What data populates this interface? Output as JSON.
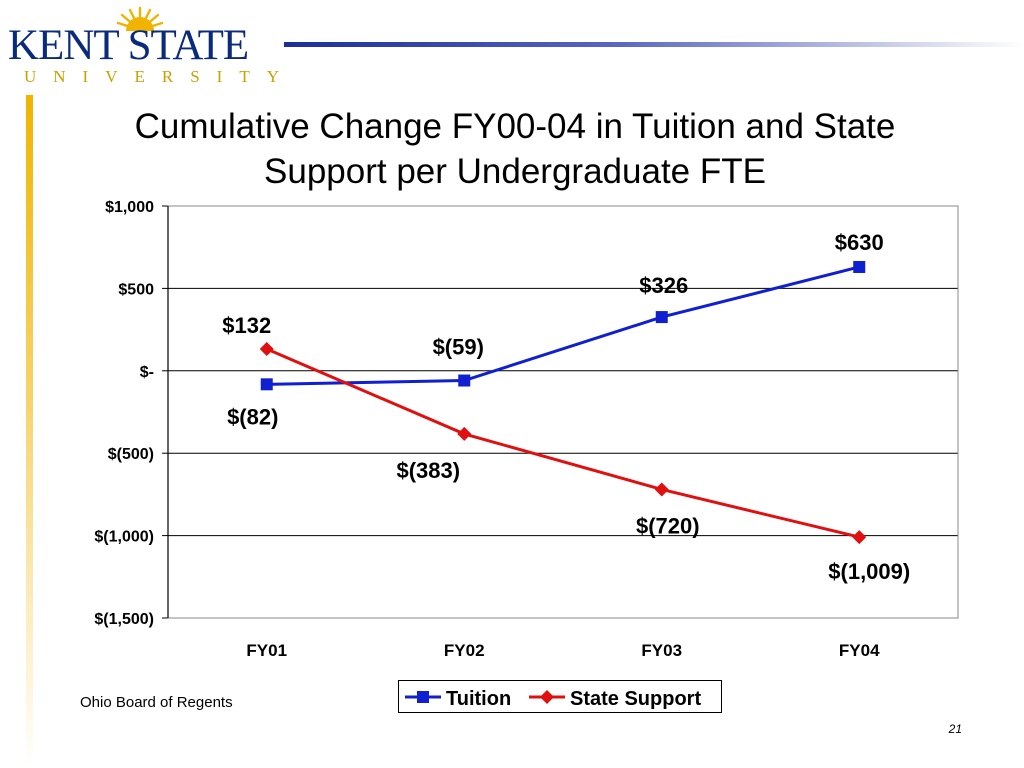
{
  "logo": {
    "main_text": "KENT STATE",
    "sub_text": "UNIVERSITY"
  },
  "slide": {
    "title_line1": "Cumulative Change FY00-04 in Tuition and State",
    "title_line2": "Support per Undergraduate FTE",
    "source": "Ohio Board of Regents",
    "page_number": "21"
  },
  "chart_data": {
    "type": "line",
    "title": "Cumulative Change FY00-04 in Tuition and State Support per Undergraduate FTE",
    "categories": [
      "FY01",
      "FY02",
      "FY03",
      "FY04"
    ],
    "series": [
      {
        "name": "Tuition",
        "values": [
          -82,
          -59,
          326,
          630
        ],
        "labels": [
          "$(82)",
          "$(59)",
          "$326",
          "$630"
        ],
        "color": "#1020d0",
        "marker": "square"
      },
      {
        "name": "State Support",
        "values": [
          132,
          -383,
          -720,
          -1009
        ],
        "labels": [
          "$132",
          "$(383)",
          "$(720)",
          "$(1,009)"
        ],
        "color": "#e01010",
        "marker": "diamond"
      }
    ],
    "ylim": [
      -1500,
      1000
    ],
    "yticks": [
      1000,
      500,
      0,
      -500,
      -1000,
      -1500
    ],
    "ytick_labels": [
      "$1,000",
      "$500",
      "$-",
      "$(500)",
      "$(1,000)",
      "$(1,500)"
    ],
    "grid": true,
    "legend_position": "bottom"
  }
}
